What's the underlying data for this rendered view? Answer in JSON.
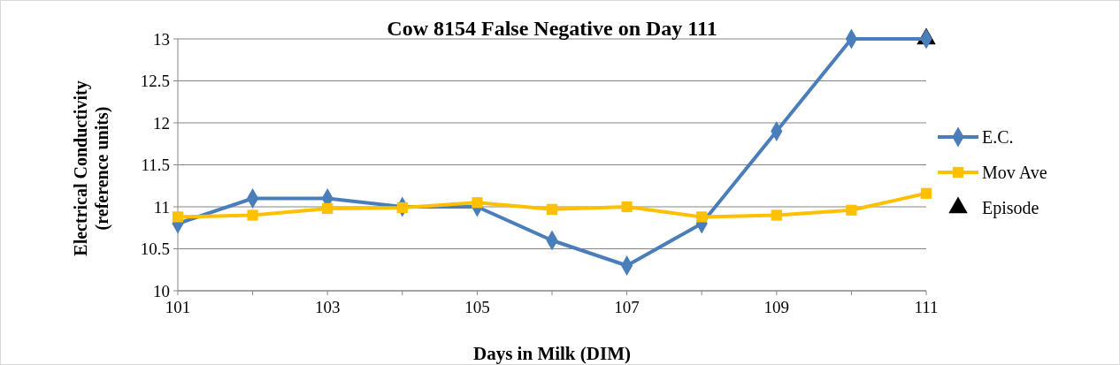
{
  "chart_data": {
    "type": "line",
    "title": "Cow 8154 False Negative on Day 111",
    "xlabel": "Days in Milk (DIM)",
    "ylabel": "Electrical Conductivity (reference units)",
    "x": [
      101,
      102,
      103,
      104,
      105,
      106,
      107,
      108,
      109,
      110,
      111
    ],
    "series": [
      {
        "name": "E.C.",
        "color": "#4a7ebb",
        "marker": "diamond",
        "values": [
          10.8,
          11.1,
          11.1,
          11.0,
          11.0,
          10.6,
          10.3,
          10.8,
          11.9,
          13.0,
          13.0
        ]
      },
      {
        "name": "Mov Ave",
        "color": "#ffc000",
        "marker": "square",
        "values": [
          10.88,
          10.9,
          10.98,
          10.99,
          11.05,
          10.97,
          11.0,
          10.88,
          10.9,
          10.96,
          11.16
        ]
      },
      {
        "name": "Episode",
        "color": "#000000",
        "marker": "triangle",
        "type": "scatter",
        "x": [
          111
        ],
        "values": [
          13.0
        ]
      }
    ],
    "xlim": [
      101,
      111
    ],
    "xticks": [
      101,
      {
        "value": 102,
        "label": null
      },
      103,
      {
        "value": 104,
        "label": null
      },
      105,
      {
        "value": 106,
        "label": null
      },
      107,
      {
        "value": 108,
        "label": null
      },
      109,
      {
        "value": 110,
        "label": null
      },
      111
    ],
    "ylim": [
      10,
      13
    ],
    "yticks": [
      10,
      10.5,
      11,
      11.5,
      12,
      12.5,
      13
    ],
    "grid": "y",
    "legend": "right"
  }
}
